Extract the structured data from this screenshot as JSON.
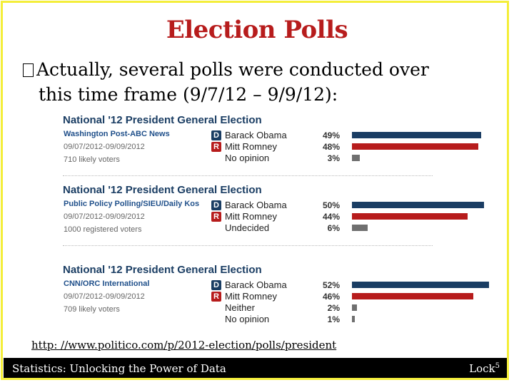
{
  "slide": {
    "title": "Election Polls",
    "bullet_line1": "Actually, several polls were conducted over",
    "bullet_line2": "this time frame (9/7/12 – 9/9/12):",
    "url": "http: //www.politico.com/p/2012-election/polls/president",
    "footer_left": "Statistics: Unlocking the Power of Data",
    "footer_right": "Lock",
    "footer_superscript": "5"
  },
  "colors": {
    "title": "#b71c1c",
    "frame": "#f4ee3a",
    "democrat": "#1a3d63",
    "republican": "#b71c1c",
    "other": "#6f6f6f"
  },
  "polls": [
    {
      "title": "National '12 President General Election",
      "pollster": "Washington Post-ABC News",
      "dates": "09/07/2012-09/09/2012",
      "voters": "710 likely voters",
      "results": [
        {
          "badge": "D",
          "party": "democrat",
          "name": "Barack Obama",
          "pct_label": "49%",
          "pct": 49
        },
        {
          "badge": "R",
          "party": "republican",
          "name": "Mitt Romney",
          "pct_label": "48%",
          "pct": 48
        },
        {
          "badge": "",
          "party": "other",
          "name": "No opinion",
          "pct_label": "3%",
          "pct": 3
        }
      ]
    },
    {
      "title": "National '12 President General Election",
      "pollster": "Public Policy Polling/SIEU/Daily Kos",
      "dates": "09/07/2012-09/09/2012",
      "voters": "1000 registered voters",
      "results": [
        {
          "badge": "D",
          "party": "democrat",
          "name": "Barack Obama",
          "pct_label": "50%",
          "pct": 50
        },
        {
          "badge": "R",
          "party": "republican",
          "name": "Mitt Romney",
          "pct_label": "44%",
          "pct": 44
        },
        {
          "badge": "",
          "party": "other",
          "name": "Undecided",
          "pct_label": "6%",
          "pct": 6
        }
      ]
    },
    {
      "title": "National '12 President General Election",
      "pollster": "CNN/ORC International",
      "dates": "09/07/2012-09/09/2012",
      "voters": "709 likely voters",
      "results": [
        {
          "badge": "D",
          "party": "democrat",
          "name": "Barack Obama",
          "pct_label": "52%",
          "pct": 52
        },
        {
          "badge": "R",
          "party": "republican",
          "name": "Mitt Romney",
          "pct_label": "46%",
          "pct": 46
        },
        {
          "badge": "",
          "party": "other",
          "name": "Neither",
          "pct_label": "2%",
          "pct": 2
        },
        {
          "badge": "",
          "party": "other",
          "name": "No opinion",
          "pct_label": "1%",
          "pct": 1
        }
      ]
    }
  ]
}
